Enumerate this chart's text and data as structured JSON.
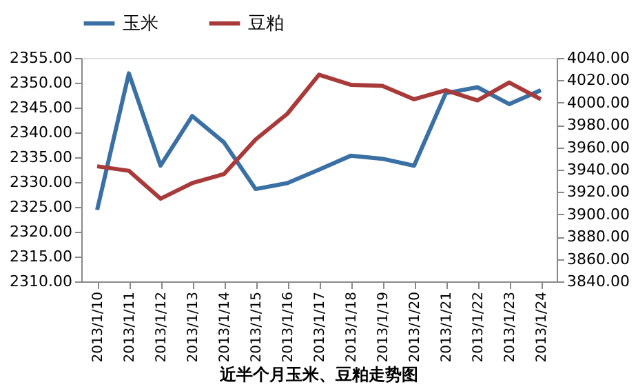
{
  "chart_data": {
    "type": "line",
    "title": "近半个月玉米、豆粕走势图",
    "categories": [
      "2013/1/10",
      "2013/1/11",
      "2013/1/12",
      "2013/1/13",
      "2013/1/14",
      "2013/1/15",
      "2013/1/16",
      "2013/1/17",
      "2013/1/18",
      "2013/1/19",
      "2013/1/20",
      "2013/1/21",
      "2013/1/22",
      "2013/1/23",
      "2013/1/24"
    ],
    "series": [
      {
        "name": "玉米",
        "color": "#3a70a4",
        "values": [
          2324.4,
          2351.9,
          2333.3,
          2343.3,
          2338.0,
          2328.6,
          2329.8,
          2332.5,
          2335.3,
          2334.7,
          2333.3,
          2347.9,
          2349.1,
          2345.7,
          2348.5
        ]
      },
      {
        "name": "豆粕",
        "color": "#a83a3a",
        "axis": "y2",
        "values": [
          3943,
          3939,
          3914,
          3928,
          3936,
          3967,
          3990,
          4025,
          4016,
          4015,
          4003,
          4011,
          4002,
          4018,
          4003
        ]
      }
    ],
    "ylim": [
      2310,
      2355
    ],
    "yticks": [
      {
        "value": 2310,
        "label": "2310.00"
      },
      {
        "value": 2315,
        "label": "2315.00"
      },
      {
        "value": 2320,
        "label": "2320.00"
      },
      {
        "value": 2325,
        "label": "2325.00"
      },
      {
        "value": 2330,
        "label": "2330.00"
      },
      {
        "value": 2335,
        "label": "2335.00"
      },
      {
        "value": 2340,
        "label": "2340.00"
      },
      {
        "value": 2345,
        "label": "2345.00"
      },
      {
        "value": 2350,
        "label": "2350.00"
      },
      {
        "value": 2355,
        "label": "2355.00"
      }
    ],
    "y2lim": [
      3840,
      4040
    ],
    "y2ticks": [
      {
        "value": 3840,
        "label": "3840.00"
      },
      {
        "value": 3860,
        "label": "3860.00"
      },
      {
        "value": 3880,
        "label": "3880.00"
      },
      {
        "value": 3900,
        "label": "3900.00"
      },
      {
        "value": 3920,
        "label": "3920.00"
      },
      {
        "value": 3940,
        "label": "3940.00"
      },
      {
        "value": 3960,
        "label": "3960.00"
      },
      {
        "value": 3980,
        "label": "3980.00"
      },
      {
        "value": 4000,
        "label": "4000.00"
      },
      {
        "value": 4020,
        "label": "4020.00"
      },
      {
        "value": 4040,
        "label": "4040.00"
      }
    ],
    "grid": false,
    "legend": "top",
    "marker": "none",
    "line_style": "solid"
  }
}
